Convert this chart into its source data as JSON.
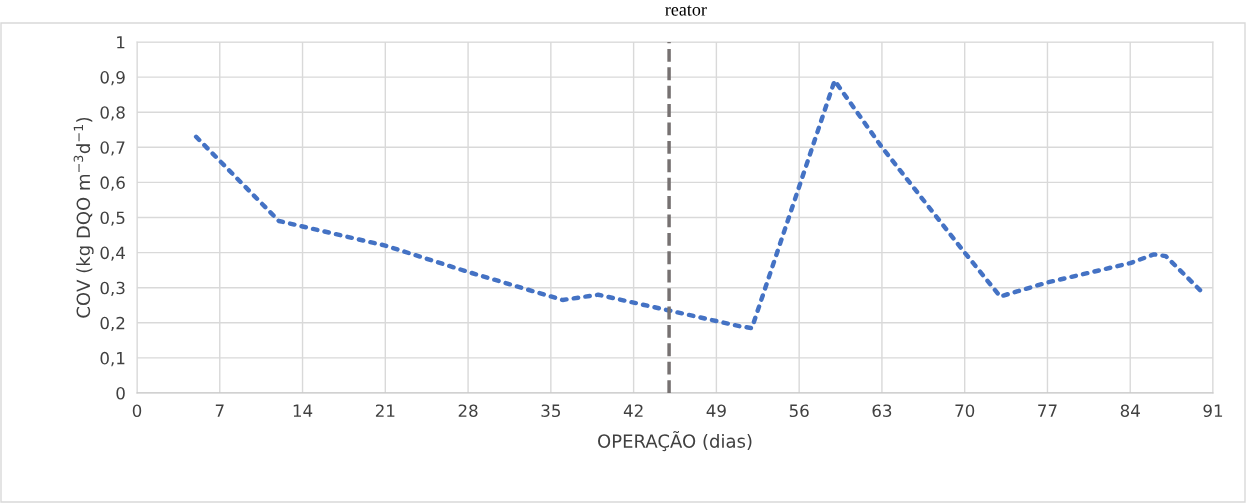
{
  "chart_data": {
    "type": "line",
    "title": "reator",
    "xlabel": "OPERAÇÃO (dias)",
    "ylabel": "COV (kg DQO m$^{−3}$d$^{−1}$)",
    "series": [
      {
        "color": "#4472c4",
        "x": [
          5,
          12,
          21,
          28,
          35,
          36,
          39,
          45,
          51,
          52,
          59,
          63,
          70,
          73,
          77,
          84,
          86,
          87,
          90
        ],
        "values": [
          0.73,
          0.49,
          0.42,
          0.345,
          0.275,
          0.265,
          0.28,
          0.235,
          0.19,
          0.185,
          0.89,
          0.7,
          0.4,
          0.275,
          0.315,
          0.37,
          0.395,
          0.39,
          0.29
        ]
      }
    ],
    "xlim": [
      0,
      91
    ],
    "xticks": [
      0,
      7,
      14,
      21,
      28,
      35,
      42,
      49,
      56,
      63,
      70,
      77,
      84,
      91
    ],
    "ylim": [
      0,
      1
    ],
    "yticks": [
      {
        "value": 0,
        "label": "0"
      },
      {
        "value": 0.1,
        "label": "0,1"
      },
      {
        "value": 0.2,
        "label": "0,2"
      },
      {
        "value": 0.3,
        "label": "0,3"
      },
      {
        "value": 0.4,
        "label": "0,4"
      },
      {
        "value": 0.5,
        "label": "0,5"
      },
      {
        "value": 0.6,
        "label": "0,6"
      },
      {
        "value": 0.7,
        "label": "0,7"
      },
      {
        "value": 0.8,
        "label": "0,8"
      },
      {
        "value": 0.9,
        "label": "0,9"
      },
      {
        "value": 1,
        "label": "1"
      }
    ],
    "grid": true,
    "line_style": "dotted",
    "marker": "none",
    "ref_lines": [
      {
        "axis": "x",
        "value": 45,
        "color": "#767171",
        "line_style": "dashed"
      }
    ]
  }
}
